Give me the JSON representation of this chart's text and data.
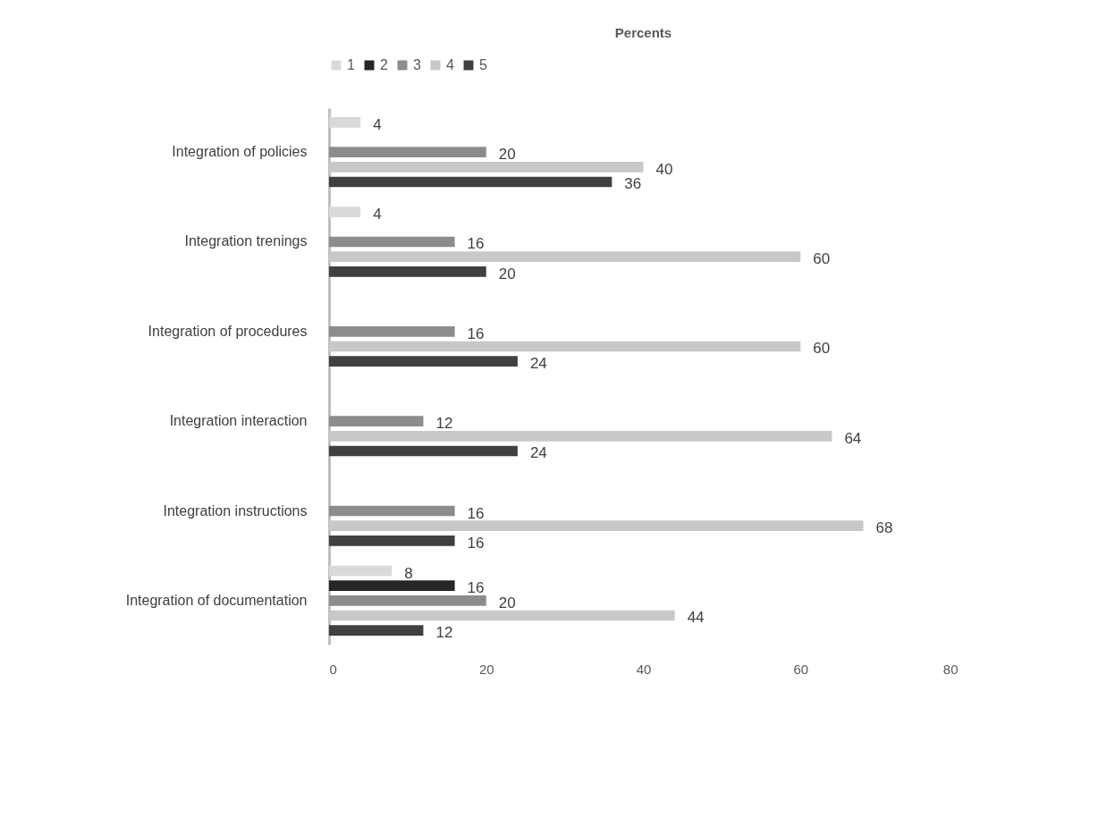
{
  "chart_data": {
    "type": "bar",
    "orientation": "horizontal",
    "title": "Percents",
    "categories": [
      "Integration of policies",
      "Integration trenings",
      "Integration of procedures",
      "Integration interaction",
      "Integration instructions",
      "Integration of documentation"
    ],
    "series": [
      {
        "name": "1",
        "color": "#d9d9d9",
        "values": [
          4,
          4,
          null,
          null,
          null,
          8
        ]
      },
      {
        "name": "2",
        "color": "#262626",
        "values": [
          null,
          null,
          null,
          null,
          null,
          16
        ]
      },
      {
        "name": "3",
        "color": "#8c8c8c",
        "values": [
          20,
          16,
          16,
          12,
          16,
          20
        ]
      },
      {
        "name": "4",
        "color": "#c8c8c8",
        "values": [
          40,
          60,
          60,
          64,
          68,
          44
        ]
      },
      {
        "name": "5",
        "color": "#404040",
        "values": [
          36,
          20,
          24,
          24,
          16,
          12
        ]
      }
    ],
    "xlim": [
      0,
      80
    ],
    "xticks": [
      0,
      20,
      40,
      60,
      80
    ],
    "grid": false,
    "legend": "top",
    "data_labels": true
  }
}
